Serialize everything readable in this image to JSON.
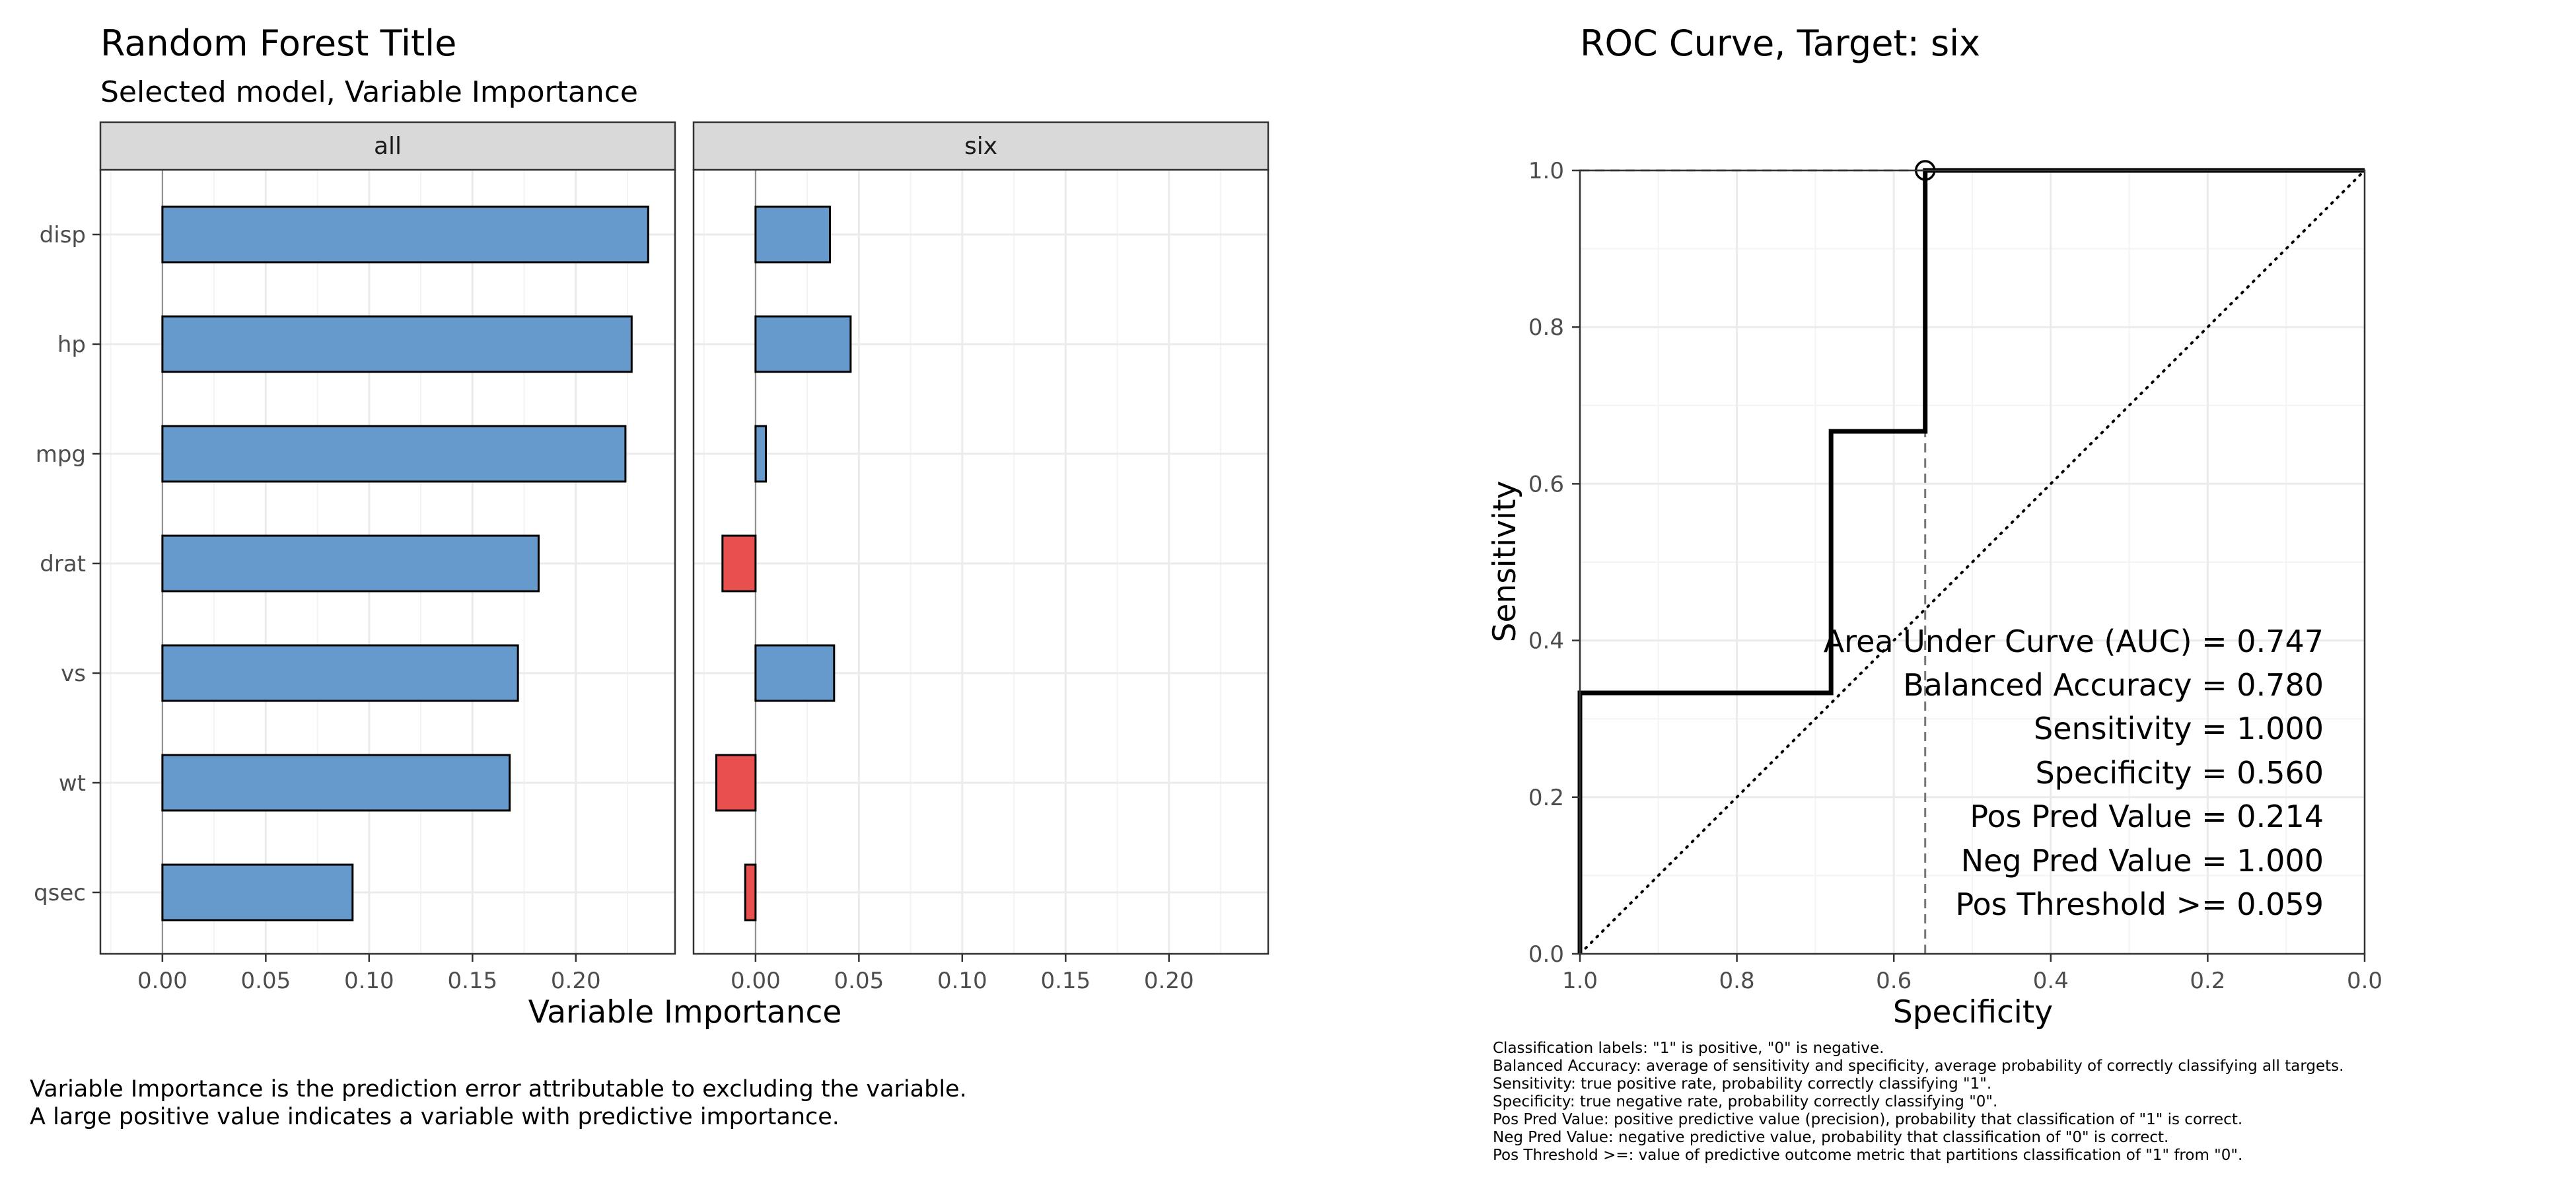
{
  "importance": {
    "title": "Random Forest Title",
    "subtitle": "Selected model, Variable Importance",
    "footnote": [
      "Variable Importance is the prediction error attributable to excluding the variable.",
      "A large positive value indicates a variable with predictive importance."
    ]
  },
  "roc": {
    "title": "ROC Curve, Target:  six",
    "stats": [
      "Area Under Curve (AUC) = 0.747",
      "Balanced Accuracy = 0.780",
      "Sensitivity = 1.000",
      "Specificity = 0.560",
      "Pos Pred Value = 0.214",
      "Neg Pred Value = 1.000",
      "Pos Threshold >= 0.059"
    ],
    "notes": [
      "Classification labels:  \"1\" is positive, \"0\" is negative.",
      "Balanced Accuracy:  average of sensitivity and specificity, average probability of correctly classifying all targets.",
      "Sensitivity:  true positive rate, probability correctly classifying \"1\".",
      "Specificity:  true negative rate, probability correctly classifying \"0\".",
      "Pos Pred Value:  positive predictive value (precision), probability that classification of \"1\" is correct.",
      "Neg Pred Value:  negative predictive value, probability that classification of \"0\" is correct.",
      "Pos Threshold >=:  value of predictive outcome metric that partitions classification of \"1\" from \"0\"."
    ]
  },
  "colors": {
    "positive": "#6699cc",
    "negative": "#e85050",
    "strip": "#d9d9d9",
    "grid_major": "#ebebeb",
    "grid_minor": "#f4f4f4"
  },
  "chart_data": [
    {
      "type": "bar",
      "orientation": "horizontal",
      "title": "Random Forest Title",
      "subtitle": "Selected model, Variable Importance",
      "xlabel": "Variable Importance",
      "ylabel": "",
      "xlim": [
        -0.03,
        0.248
      ],
      "xticks": [
        0.0,
        0.05,
        0.1,
        0.15,
        0.2
      ],
      "xtick_labels": [
        "0.00",
        "0.05",
        "0.10",
        "0.15",
        "0.20"
      ],
      "categories": [
        "disp",
        "hp",
        "mpg",
        "drat",
        "vs",
        "wt",
        "qsec"
      ],
      "series": [
        {
          "name": "all",
          "values": [
            0.235,
            0.227,
            0.224,
            0.182,
            0.172,
            0.168,
            0.092
          ]
        },
        {
          "name": "six",
          "values": [
            0.036,
            0.046,
            0.005,
            -0.016,
            0.038,
            -0.019,
            -0.005
          ]
        }
      ],
      "grid": true,
      "legend": "none"
    },
    {
      "type": "line",
      "title": "ROC Curve, Target:  six",
      "xlabel": "Specificity",
      "ylabel": "Sensitivity",
      "xlim": [
        1.0,
        0.0
      ],
      "ylim": [
        0.0,
        1.0
      ],
      "xticks": [
        1.0,
        0.8,
        0.6,
        0.4,
        0.2,
        0.0
      ],
      "xtick_labels": [
        "1.0",
        "0.8",
        "0.6",
        "0.4",
        "0.2",
        "0.0"
      ],
      "yticks": [
        0.0,
        0.2,
        0.4,
        0.6,
        0.8,
        1.0
      ],
      "ytick_labels": [
        "0.0",
        "0.2",
        "0.4",
        "0.6",
        "0.8",
        "1.0"
      ],
      "series": [
        {
          "x": [
            1.0,
            1.0,
            0.68,
            0.68,
            0.56,
            0.56,
            0.0
          ],
          "y": [
            0.0,
            0.333,
            0.333,
            0.667,
            0.667,
            1.0,
            1.0
          ]
        }
      ],
      "reference_line": {
        "x": [
          1.0,
          0.0
        ],
        "y": [
          0.0,
          1.0
        ]
      },
      "threshold_point": {
        "x": 0.56,
        "y": 1.0
      },
      "grid": true
    }
  ]
}
